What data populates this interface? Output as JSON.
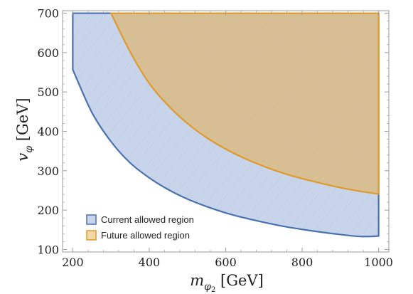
{
  "chart_data": {
    "type": "area",
    "xlim": [
      200,
      1000
    ],
    "ylim": [
      100,
      700
    ],
    "x_ticks": [
      "200",
      "400",
      "600",
      "800",
      "1000"
    ],
    "y_ticks": [
      "100",
      "200",
      "300",
      "400",
      "500",
      "600",
      "700"
    ],
    "xlabel": {
      "symbol": "m",
      "sub": "φ",
      "subsub": "2",
      "unit": " [GeV]"
    },
    "ylabel": {
      "symbol": "v",
      "sub": "φ",
      "unit": " [GeV]"
    },
    "grid": false,
    "legend_position": "bottom-left",
    "series": [
      {
        "name": "Current allowed region",
        "color_fill": "#c7d4ea",
        "color_line": "#4a72b0",
        "lower_boundary": {
          "x": [
            200,
            250,
            300,
            350,
            400,
            450,
            500,
            550,
            600,
            650,
            700,
            750,
            800,
            850,
            900,
            950,
            1000
          ],
          "y": [
            557,
            448,
            374,
            320,
            282,
            252,
            228,
            209,
            193,
            180,
            169,
            159,
            151,
            144,
            138,
            133,
            134
          ]
        },
        "upper_y": 700
      },
      {
        "name": "Future allowed region",
        "color_fill": "#d8bc8a",
        "color_line": "#e09a2a",
        "lower_boundary": {
          "x": [
            300,
            350,
            400,
            450,
            500,
            550,
            600,
            650,
            700,
            750,
            800,
            850,
            900,
            950,
            1000
          ],
          "y": [
            700,
            602,
            522,
            465,
            420,
            384,
            355,
            331,
            311,
            294,
            280,
            268,
            257,
            248,
            241
          ]
        },
        "upper_y": 700
      }
    ]
  }
}
